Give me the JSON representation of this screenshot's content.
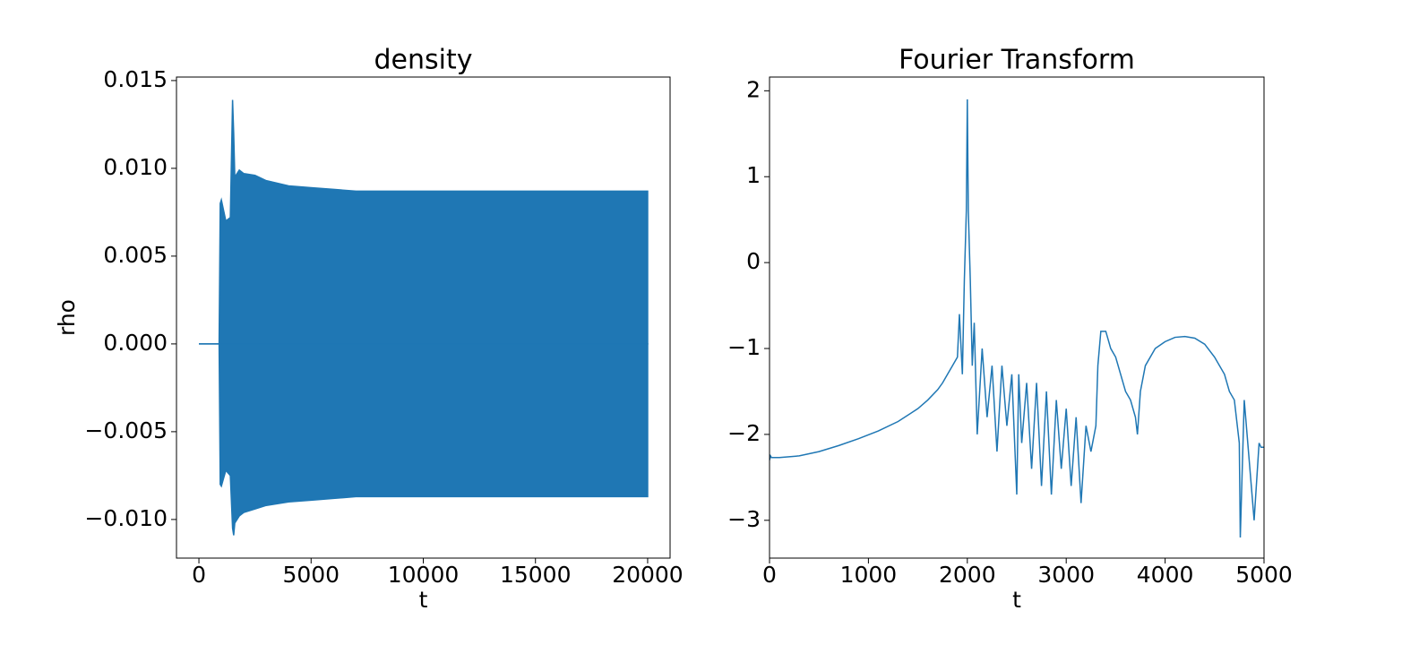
{
  "chart_data": [
    {
      "type": "band",
      "title": "density",
      "x_label": "t",
      "y_label": "rho",
      "color": "#1f77b4",
      "x": [
        0,
        900,
        950,
        1000,
        1200,
        1400,
        1500,
        1550,
        1600,
        1800,
        2000,
        2500,
        3000,
        4000,
        5000,
        6000,
        7000,
        10000,
        15000,
        20000
      ],
      "upper": [
        0,
        0,
        0.008,
        0.0082,
        0.007,
        0.0072,
        0.0139,
        0.012,
        0.0095,
        0.0099,
        0.0097,
        0.0096,
        0.0093,
        0.009,
        0.0089,
        0.0088,
        0.0087,
        0.0087,
        0.0087,
        0.0087
      ],
      "lower": [
        0,
        0,
        -0.008,
        -0.0081,
        -0.0072,
        -0.0075,
        -0.0105,
        -0.0109,
        -0.0102,
        -0.0098,
        -0.0096,
        -0.0094,
        -0.0092,
        -0.009,
        -0.0089,
        -0.0088,
        -0.0087,
        -0.0087,
        -0.0087,
        -0.0087
      ],
      "xlim": [
        -1000,
        21000
      ],
      "ylim": [
        -0.0122,
        0.0152
      ],
      "xticks": [
        0,
        5000,
        10000,
        15000,
        20000
      ],
      "yticks": [
        {
          "value": -0.01,
          "label": "−0.010"
        },
        {
          "value": -0.005,
          "label": "−0.005"
        },
        {
          "value": 0,
          "label": "0.000"
        },
        {
          "value": 0.005,
          "label": "0.005"
        },
        {
          "value": 0.01,
          "label": "0.010"
        },
        {
          "value": 0.015,
          "label": "0.015"
        }
      ]
    },
    {
      "type": "line",
      "title": "Fourier Transform",
      "x_label": "t",
      "color": "#1f77b4",
      "x": [
        0,
        10,
        20,
        100,
        300,
        500,
        700,
        900,
        1100,
        1300,
        1500,
        1600,
        1700,
        1750,
        1800,
        1850,
        1900,
        1920,
        1950,
        1970,
        1990,
        2000,
        2010,
        2030,
        2050,
        2070,
        2100,
        2150,
        2200,
        2250,
        2300,
        2350,
        2400,
        2450,
        2500,
        2520,
        2550,
        2600,
        2650,
        2700,
        2750,
        2800,
        2850,
        2900,
        2950,
        3000,
        3050,
        3100,
        3150,
        3200,
        3250,
        3300,
        3320,
        3350,
        3400,
        3450,
        3500,
        3550,
        3600,
        3650,
        3700,
        3720,
        3750,
        3800,
        3900,
        4000,
        4100,
        4200,
        4300,
        4400,
        4500,
        4600,
        4650,
        4700,
        4750,
        4760,
        4800,
        4850,
        4900,
        4950,
        4970,
        5000
      ],
      "values": [
        -2.3,
        -2.25,
        -2.27,
        -2.27,
        -2.25,
        -2.2,
        -2.13,
        -2.05,
        -1.96,
        -1.85,
        -1.7,
        -1.6,
        -1.48,
        -1.4,
        -1.3,
        -1.2,
        -1.1,
        -0.6,
        -1.3,
        -0.2,
        0.6,
        1.9,
        0.6,
        -0.2,
        -1.2,
        -0.7,
        -2.0,
        -1.0,
        -1.8,
        -1.2,
        -2.2,
        -1.2,
        -1.9,
        -1.3,
        -2.7,
        -1.3,
        -2.1,
        -1.4,
        -2.4,
        -1.4,
        -2.6,
        -1.5,
        -2.7,
        -1.6,
        -2.4,
        -1.7,
        -2.6,
        -1.8,
        -2.8,
        -1.9,
        -2.2,
        -1.9,
        -1.2,
        -0.8,
        -0.8,
        -1.0,
        -1.1,
        -1.3,
        -1.5,
        -1.6,
        -1.8,
        -2.0,
        -1.5,
        -1.2,
        -1.0,
        -0.92,
        -0.87,
        -0.86,
        -0.88,
        -0.95,
        -1.1,
        -1.3,
        -1.5,
        -1.6,
        -2.1,
        -3.2,
        -1.6,
        -2.3,
        -3.0,
        -2.1,
        -2.15,
        -2.15
      ],
      "xlim": [
        0,
        5000
      ],
      "ylim": [
        -3.44,
        2.16
      ],
      "xticks": [
        0,
        1000,
        2000,
        3000,
        4000,
        5000
      ],
      "yticks": [
        {
          "value": -3,
          "label": "−3"
        },
        {
          "value": -2,
          "label": "−2"
        },
        {
          "value": -1,
          "label": "−1"
        },
        0,
        1,
        2
      ]
    }
  ]
}
